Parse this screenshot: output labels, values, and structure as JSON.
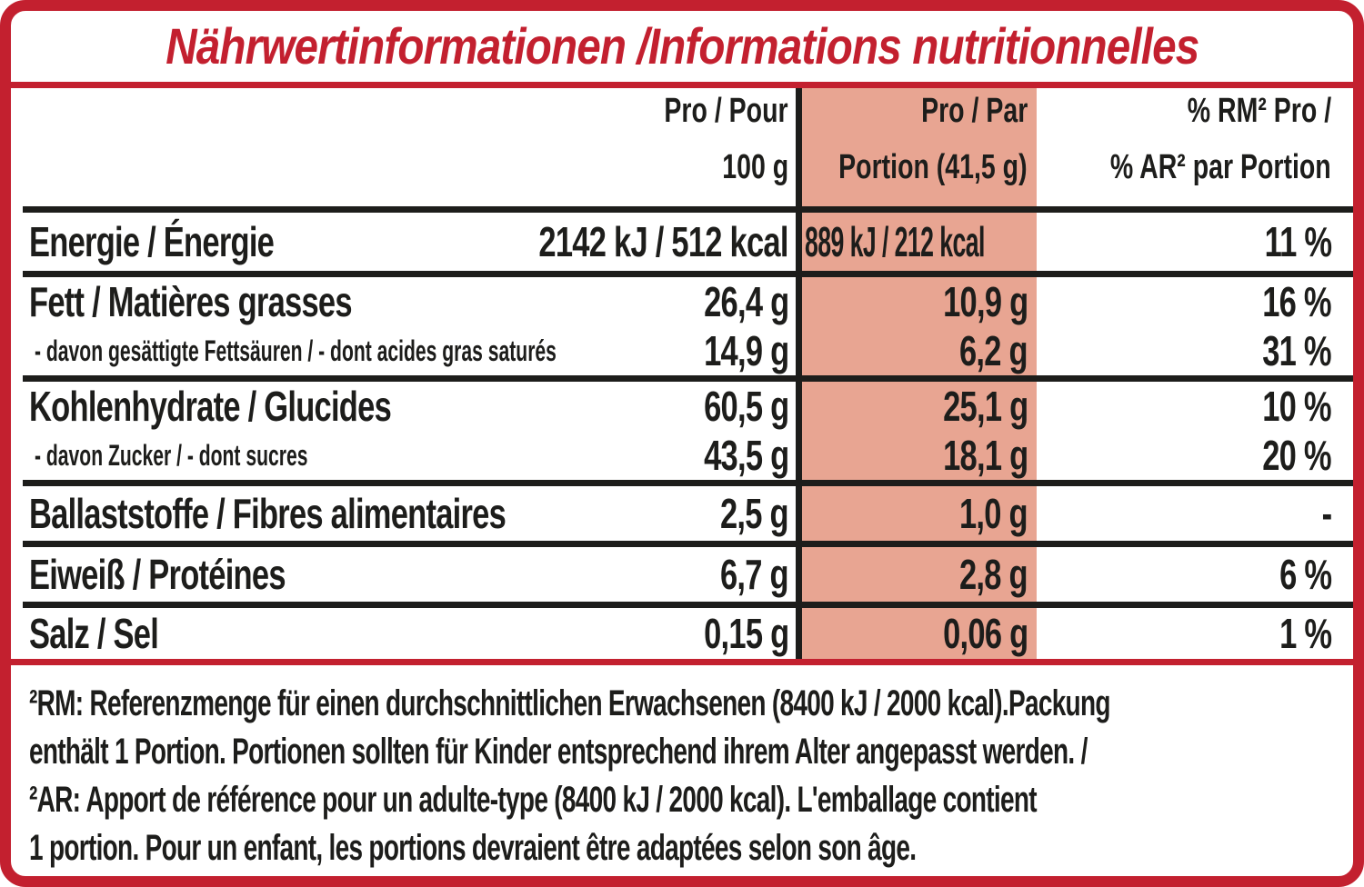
{
  "title": "Nährwertinformationen /Informations nutritionnelles",
  "colors": {
    "accent_red": "#c3202f",
    "portion_highlight": "#e8a592",
    "text_black": "#1d1d1b"
  },
  "table": {
    "headers": {
      "per100": [
        "Pro / Pour",
        "100 g"
      ],
      "portion": [
        "Pro / Par",
        "Portion (41,5 g)"
      ],
      "pct": [
        "% RM² Pro /",
        "% AR² par Portion"
      ]
    },
    "rows": [
      {
        "label": "Energie / Énergie",
        "per100": "2142 kJ / 512 kcal",
        "portion": "889 kJ / 212 kcal",
        "pct": "11 %"
      },
      {
        "label": "Fett / Matières grasses",
        "per100": "26,4 g",
        "portion": "10,9 g",
        "pct": "16 %"
      },
      {
        "label": "- davon gesättigte Fettsäuren / - dont acides gras saturés",
        "per100": "14,9 g",
        "portion": "6,2 g",
        "pct": "31 %"
      },
      {
        "label": "Kohlenhydrate / Glucides",
        "per100": "60,5 g",
        "portion": "25,1 g",
        "pct": "10 %"
      },
      {
        "label": "- davon Zucker / - dont sucres",
        "per100": "43,5 g",
        "portion": "18,1 g",
        "pct": "20 %"
      },
      {
        "label": "Ballaststoffe / Fibres alimentaires",
        "per100": "2,5 g",
        "portion": "1,0 g",
        "pct": "-"
      },
      {
        "label": "Eiweiß / Protéines",
        "per100": "6,7 g",
        "portion": "2,8 g",
        "pct": "6 %"
      },
      {
        "label": "Salz / Sel",
        "per100": "0,15 g",
        "portion": "0,06 g",
        "pct": "1 %"
      }
    ]
  },
  "footnote": {
    "lines": [
      "²RM: Referenzmenge für einen durchschnittlichen Erwachsenen (8400 kJ / 2000 kcal).Packung",
      "enthält 1 Portion. Portionen sollten für Kinder entsprechend ihrem Alter angepasst werden. /",
      "²AR: Apport de référence pour un adulte-type (8400 kJ / 2000 kcal). L'emballage contient",
      "1 portion. Pour un enfant, les portions devraient être adaptées selon son âge."
    ]
  }
}
